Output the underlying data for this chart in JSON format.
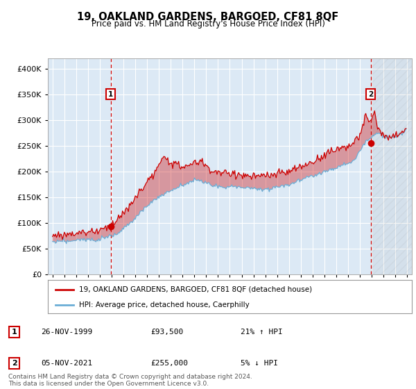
{
  "title": "19, OAKLAND GARDENS, BARGOED, CF81 8QF",
  "subtitle": "Price paid vs. HM Land Registry's House Price Index (HPI)",
  "legend_line1": "19, OAKLAND GARDENS, BARGOED, CF81 8QF (detached house)",
  "legend_line2": "HPI: Average price, detached house, Caerphilly",
  "sale1_label": "1",
  "sale1_date": "26-NOV-1999",
  "sale1_price": "£93,500",
  "sale1_hpi": "21% ↑ HPI",
  "sale1_year": 1999.917,
  "sale1_value": 93500,
  "sale2_label": "2",
  "sale2_date": "05-NOV-2021",
  "sale2_price": "£255,000",
  "sale2_hpi": "5% ↓ HPI",
  "sale2_year": 2021.917,
  "sale2_value": 255000,
  "footer": "Contains HM Land Registry data © Crown copyright and database right 2024.\nThis data is licensed under the Open Government Licence v3.0.",
  "hpi_color": "#6baed6",
  "price_color": "#cc0000",
  "bg_color": "#dce9f5",
  "plot_bg": "#dce9f5",
  "grid_color": "#ffffff",
  "ylim": [
    0,
    420000
  ],
  "xlim_start": 1994.6,
  "xlim_end": 2025.4
}
